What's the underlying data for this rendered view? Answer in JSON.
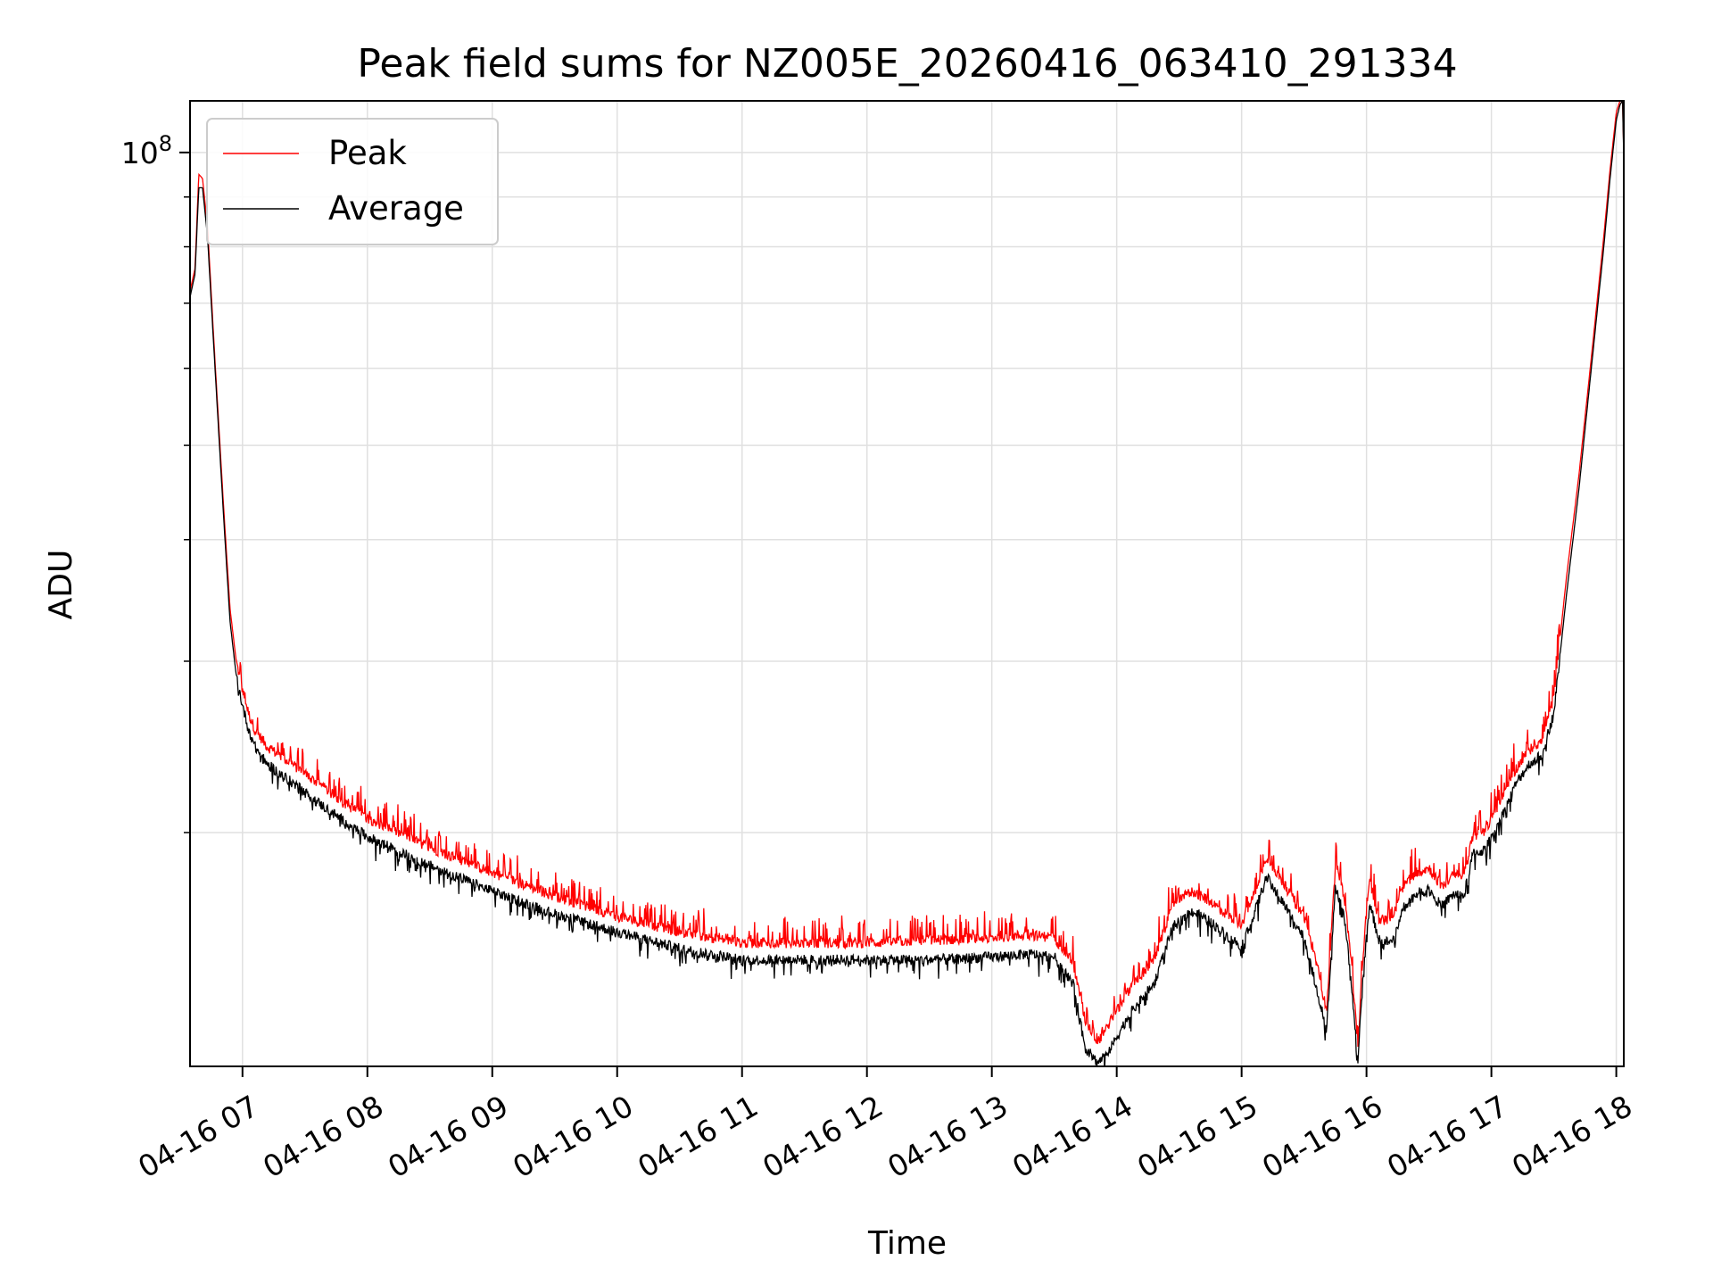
{
  "chart_data": {
    "type": "line",
    "title": "Peak field sums for NZ005E_20260416_063410_291334",
    "xlabel": "Time",
    "ylabel": "ADU",
    "yscale": "log",
    "ylim": [
      11500000,
      113000000
    ],
    "xlim": [
      6.58,
      18.06
    ],
    "y_tick_label": {
      "base": "10",
      "exponent": "8"
    },
    "y_major_tick_value": 100000000,
    "y_minor_tick_values": [
      20000000,
      30000000,
      40000000,
      50000000,
      60000000,
      70000000,
      80000000,
      90000000
    ],
    "x_ticks": [
      {
        "value": 7,
        "label": "04-16 07"
      },
      {
        "value": 8,
        "label": "04-16 08"
      },
      {
        "value": 9,
        "label": "04-16 09"
      },
      {
        "value": 10,
        "label": "04-16 10"
      },
      {
        "value": 11,
        "label": "04-16 11"
      },
      {
        "value": 12,
        "label": "04-16 12"
      },
      {
        "value": 13,
        "label": "04-16 13"
      },
      {
        "value": 14,
        "label": "04-16 14"
      },
      {
        "value": 15,
        "label": "04-16 15"
      },
      {
        "value": 16,
        "label": "04-16 16"
      },
      {
        "value": 17,
        "label": "04-16 17"
      },
      {
        "value": 18,
        "label": "04-16 18"
      }
    ],
    "grid": true,
    "legend_position": "top-left",
    "series": [
      {
        "name": "Peak",
        "color": "#ff0000",
        "noise": "spiky"
      },
      {
        "name": "Average",
        "color": "#000000",
        "noise": "small"
      }
    ],
    "x": [
      6.58,
      6.6,
      6.62,
      6.65,
      6.68,
      6.72,
      6.78,
      6.85,
      6.9,
      6.95,
      7.0,
      7.05,
      7.1,
      7.2,
      7.4,
      7.6,
      7.8,
      8.0,
      8.5,
      9.0,
      9.5,
      10.0,
      10.5,
      11.0,
      11.5,
      12.0,
      12.5,
      13.0,
      13.3,
      13.5,
      13.65,
      13.75,
      13.85,
      13.95,
      14.1,
      14.3,
      14.45,
      14.6,
      14.75,
      14.9,
      15.0,
      15.1,
      15.2,
      15.35,
      15.5,
      15.62,
      15.68,
      15.75,
      15.82,
      15.88,
      15.93,
      15.97,
      16.02,
      16.1,
      16.2,
      16.3,
      16.4,
      16.5,
      16.6,
      16.7,
      16.78,
      16.85,
      16.95,
      17.1,
      17.2,
      17.3,
      17.4,
      17.5,
      17.6,
      17.7,
      17.8,
      17.9,
      17.95,
      18.0,
      18.03,
      18.05,
      18.06
    ],
    "average": [
      71000000,
      73000000,
      75000000,
      92000000,
      92000000,
      82000000,
      60000000,
      42000000,
      33000000,
      29000000,
      27000000,
      25500000,
      24500000,
      23500000,
      22500000,
      21500000,
      20600000,
      19800000,
      18500000,
      17400000,
      16500000,
      15800000,
      15200000,
      14800000,
      14800000,
      14800000,
      14800000,
      14900000,
      15000000,
      14900000,
      14000000,
      12000000,
      11600000,
      12000000,
      13000000,
      14000000,
      16000000,
      16600000,
      16200000,
      15600000,
      15300000,
      16500000,
      18000000,
      16800000,
      15600000,
      13500000,
      12500000,
      17500000,
      16500000,
      14000000,
      11600000,
      14000000,
      17000000,
      15500000,
      15400000,
      16800000,
      17300000,
      17500000,
      16800000,
      17300000,
      17200000,
      19000000,
      19200000,
      21000000,
      22500000,
      23500000,
      24000000,
      26500000,
      35000000,
      45000000,
      60000000,
      80000000,
      94000000,
      108000000,
      112000000,
      113000000,
      99000000
    ],
    "peak": [
      72000000,
      74000000,
      76000000,
      95000000,
      94000000,
      84000000,
      61000000,
      43000000,
      34000000,
      30000000,
      28000000,
      26500000,
      25500000,
      24500000,
      23500000,
      22500000,
      21500000,
      20700000,
      19300000,
      18200000,
      17200000,
      16400000,
      15800000,
      15400000,
      15400000,
      15400000,
      15500000,
      15600000,
      15700000,
      15600000,
      14700000,
      12800000,
      12200000,
      12800000,
      13800000,
      14800000,
      16900000,
      17400000,
      17000000,
      16400000,
      16100000,
      17300000,
      18900000,
      17600000,
      16400000,
      14300000,
      13100000,
      18400000,
      17300000,
      14700000,
      12000000,
      14800000,
      17900000,
      16300000,
      16200000,
      17700000,
      18200000,
      18400000,
      17600000,
      18100000,
      18000000,
      19800000,
      20100000,
      21900000,
      23300000,
      24300000,
      24800000,
      27500000,
      36500000,
      46500000,
      61500000,
      82000000,
      96000000,
      110000000,
      113000000,
      113000000,
      100000000
    ]
  }
}
